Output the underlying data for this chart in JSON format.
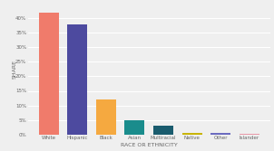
{
  "categories": [
    "White",
    "Hispanic",
    "Black",
    "Asian",
    "Multiracial",
    "Native",
    "Other",
    "Islander"
  ],
  "values": [
    42,
    38,
    12,
    5,
    3,
    0.5,
    0.4,
    0.3
  ],
  "bar_colors": [
    "#F07B6B",
    "#4D4A9F",
    "#F5A940",
    "#1A8C8C",
    "#1A5C6E",
    "#C8B400",
    "#6B6BBF",
    "#E899A8"
  ],
  "ylabel": "SHARE",
  "xlabel": "RACE OR ETHNICITY",
  "ylim": [
    0,
    45
  ],
  "yticks": [
    0,
    5,
    10,
    15,
    20,
    25,
    30,
    35,
    40
  ],
  "ytick_labels": [
    "0%",
    "5%",
    "10%",
    "15%",
    "20%",
    "25%",
    "30%",
    "35%",
    "40%"
  ],
  "background_color": "#EFEFEF",
  "grid_color": "#FFFFFF",
  "label_fontsize": 4.5,
  "tick_fontsize": 4.0,
  "bar_width": 0.7
}
